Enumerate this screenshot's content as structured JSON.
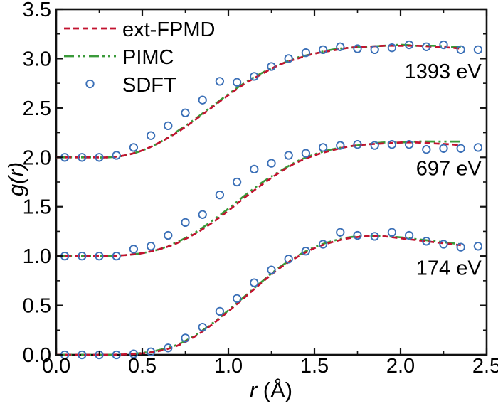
{
  "chart_data": {
    "type": "line+scatter",
    "title": "",
    "xlabel": {
      "italic": "r",
      "rest": " (Å)"
    },
    "ylabel": "g(r)",
    "xlim": [
      0.0,
      2.5
    ],
    "ylim": [
      0.0,
      3.5
    ],
    "grid": false,
    "legend_position": "upper-left-inside",
    "xticks": [
      0.0,
      0.5,
      1.0,
      1.5,
      2.0,
      2.5
    ],
    "xtick_labels": [
      "0.0",
      "0.5",
      "1.0",
      "1.5",
      "2.0",
      "2.5"
    ],
    "xticks_minor": [
      0.25,
      0.75,
      1.25,
      1.75,
      2.25
    ],
    "yticks": [
      0.0,
      0.5,
      1.0,
      1.5,
      2.0,
      2.5,
      3.0,
      3.5
    ],
    "ytick_labels": [
      "0.0",
      "0.5",
      "1.0",
      "1.5",
      "2.0",
      "2.5",
      "3.0",
      "3.5"
    ],
    "yticks_minor": [
      0.25,
      0.75,
      1.25,
      1.75,
      2.25,
      2.75,
      3.25
    ],
    "colors": {
      "ext_fpmd": "#c2122f",
      "pimc": "#3a9a3a",
      "sdft": "#3a6fb7",
      "axis": "#111111",
      "text": "#000000"
    },
    "legend": [
      {
        "label": "ext-FPMD",
        "series": "ext_fpmd",
        "marker": "dashed-line"
      },
      {
        "label": "PIMC",
        "series": "pimc",
        "marker": "dashdot-line"
      },
      {
        "label": "SDFT",
        "series": "sdft",
        "marker": "open-circle"
      }
    ],
    "line_r": [
      0.0,
      0.1,
      0.2,
      0.3,
      0.4,
      0.5,
      0.6,
      0.7,
      0.8,
      0.9,
      1.0,
      1.1,
      1.2,
      1.3,
      1.4,
      1.5,
      1.6,
      1.7,
      1.8,
      1.9,
      2.0,
      2.1,
      2.2,
      2.3,
      2.35
    ],
    "scatter_r": [
      0.05,
      0.15,
      0.25,
      0.35,
      0.45,
      0.55,
      0.65,
      0.75,
      0.85,
      0.95,
      1.05,
      1.15,
      1.25,
      1.35,
      1.45,
      1.55,
      1.65,
      1.75,
      1.85,
      1.95,
      2.05,
      2.15,
      2.25,
      2.35,
      2.45
    ],
    "groups": [
      {
        "label": "174 eV",
        "offset": 0.0,
        "annotation": {
          "r": 2.47,
          "g": 0.81
        },
        "ext_fpmd": [
          0.0,
          0.0,
          0.0,
          0.0,
          0.005,
          0.015,
          0.04,
          0.09,
          0.18,
          0.3,
          0.44,
          0.59,
          0.74,
          0.88,
          0.99,
          1.08,
          1.14,
          1.18,
          1.2,
          1.2,
          1.18,
          1.16,
          1.14,
          1.12,
          1.11
        ],
        "pimc": [
          0.0,
          0.0,
          0.0,
          0.0,
          0.005,
          0.02,
          0.05,
          0.1,
          0.19,
          0.31,
          0.45,
          0.6,
          0.75,
          0.89,
          1.0,
          1.09,
          1.15,
          1.19,
          1.2,
          1.2,
          1.19,
          1.17,
          1.15,
          1.13,
          1.12
        ],
        "sdft": [
          0.0,
          0.0,
          0.0,
          0.0,
          0.01,
          0.03,
          0.07,
          0.17,
          0.28,
          0.44,
          0.57,
          0.73,
          0.86,
          0.97,
          1.05,
          1.12,
          1.24,
          1.21,
          1.2,
          1.24,
          1.21,
          1.15,
          1.12,
          1.09,
          1.1
        ]
      },
      {
        "label": "697 eV",
        "offset": 1.0,
        "annotation": {
          "r": 2.47,
          "g": 1.82
        },
        "ext_fpmd": [
          1.0,
          1.0,
          1.0,
          1.0,
          1.01,
          1.03,
          1.07,
          1.13,
          1.22,
          1.33,
          1.46,
          1.6,
          1.73,
          1.85,
          1.95,
          2.02,
          2.07,
          2.11,
          2.13,
          2.14,
          2.15,
          2.15,
          2.14,
          2.13,
          2.12
        ],
        "pimc": [
          1.0,
          1.0,
          1.0,
          1.0,
          1.01,
          1.03,
          1.07,
          1.14,
          1.23,
          1.35,
          1.48,
          1.62,
          1.75,
          1.86,
          1.96,
          2.03,
          2.08,
          2.11,
          2.13,
          2.15,
          2.15,
          2.16,
          2.16,
          2.16,
          2.16
        ],
        "sdft": [
          1.0,
          1.0,
          1.0,
          1.0,
          1.07,
          1.1,
          1.21,
          1.34,
          1.42,
          1.62,
          1.75,
          1.88,
          1.94,
          2.02,
          2.04,
          2.1,
          2.12,
          2.13,
          2.12,
          2.13,
          2.13,
          2.08,
          2.09,
          2.09,
          2.1
        ]
      },
      {
        "label": "1393 eV",
        "offset": 2.0,
        "annotation": {
          "r": 2.47,
          "g": 2.8
        },
        "ext_fpmd": [
          2.0,
          2.0,
          2.0,
          2.0,
          2.02,
          2.07,
          2.15,
          2.25,
          2.37,
          2.5,
          2.63,
          2.75,
          2.85,
          2.94,
          3.0,
          3.05,
          3.08,
          3.11,
          3.12,
          3.13,
          3.13,
          3.13,
          3.12,
          3.11,
          3.1
        ],
        "pimc": [
          2.0,
          2.0,
          2.0,
          2.0,
          2.02,
          2.07,
          2.15,
          2.26,
          2.38,
          2.51,
          2.64,
          2.76,
          2.86,
          2.94,
          3.01,
          3.05,
          3.09,
          3.11,
          3.12,
          3.13,
          3.14,
          3.13,
          3.13,
          3.12,
          3.12
        ],
        "sdft": [
          2.0,
          2.0,
          2.0,
          2.02,
          2.1,
          2.22,
          2.32,
          2.45,
          2.58,
          2.77,
          2.76,
          2.82,
          2.92,
          3.0,
          3.06,
          3.09,
          3.12,
          3.1,
          3.09,
          3.11,
          3.14,
          3.12,
          3.14,
          3.09,
          3.09
        ]
      }
    ]
  }
}
